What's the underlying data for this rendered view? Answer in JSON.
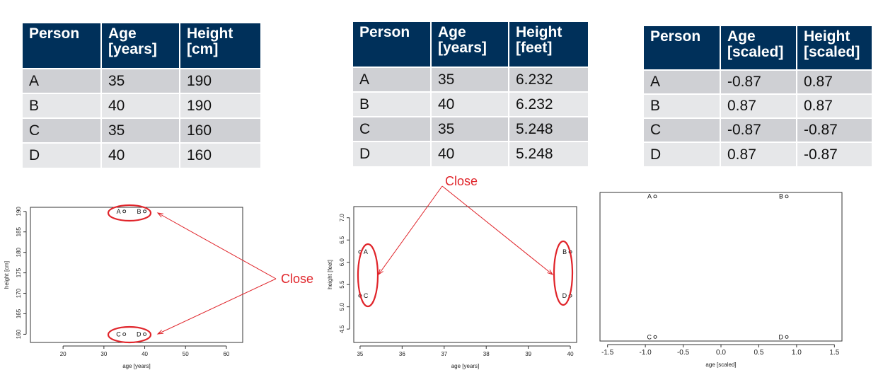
{
  "tables": [
    {
      "headers": [
        [
          "Person"
        ],
        [
          "Age",
          "[years]"
        ],
        [
          "Height",
          "[cm]"
        ]
      ],
      "rows": [
        [
          "A",
          "35",
          "190"
        ],
        [
          "B",
          "40",
          "190"
        ],
        [
          "C",
          "35",
          "160"
        ],
        [
          "D",
          "40",
          "160"
        ]
      ]
    },
    {
      "headers": [
        [
          "Person"
        ],
        [
          "Age",
          "[years]"
        ],
        [
          "Height",
          "[feet]"
        ]
      ],
      "rows": [
        [
          "A",
          "35",
          "6.232"
        ],
        [
          "B",
          "40",
          "6.232"
        ],
        [
          "C",
          "35",
          "5.248"
        ],
        [
          "D",
          "40",
          "5.248"
        ]
      ]
    },
    {
      "headers": [
        [
          "Person"
        ],
        [
          "Age",
          "[scaled]"
        ],
        [
          "Height",
          "[scaled]"
        ]
      ],
      "rows": [
        [
          "A",
          "-0.87",
          "0.87"
        ],
        [
          "B",
          "0.87",
          "0.87"
        ],
        [
          "C",
          "-0.87",
          "-0.87"
        ],
        [
          "D",
          "0.87",
          "-0.87"
        ]
      ]
    }
  ],
  "annotation": {
    "close_label": "Close",
    "color": "#e0242a"
  },
  "chart_data": [
    {
      "type": "scatter",
      "xlabel": "age [years]",
      "ylabel": "height [cm]",
      "xlim": [
        12,
        64
      ],
      "ylim": [
        158,
        191
      ],
      "xticks": [
        "20",
        "30",
        "40",
        "50",
        "60"
      ],
      "yticks": [
        "160",
        "165",
        "170",
        "175",
        "180",
        "185",
        "190"
      ],
      "points": [
        {
          "label": "A",
          "x": 35,
          "y": 190
        },
        {
          "label": "B",
          "x": 40,
          "y": 190
        },
        {
          "label": "C",
          "x": 35,
          "y": 160
        },
        {
          "label": "D",
          "x": 40,
          "y": 160
        }
      ]
    },
    {
      "type": "scatter",
      "xlabel": "age [years]",
      "ylabel": "height [feet]",
      "xlim": [
        34.85,
        40.15
      ],
      "ylim": [
        4.2,
        7.25
      ],
      "xticks": [
        "35",
        "36",
        "37",
        "38",
        "39",
        "40"
      ],
      "yticks": [
        "4.5",
        "5.0",
        "5.5",
        "6.0",
        "6.5",
        "7.0"
      ],
      "points": [
        {
          "label": "A",
          "x": 35,
          "y": 6.232
        },
        {
          "label": "B",
          "x": 40,
          "y": 6.232
        },
        {
          "label": "C",
          "x": 35,
          "y": 5.248
        },
        {
          "label": "D",
          "x": 40,
          "y": 5.248
        }
      ]
    },
    {
      "type": "scatter",
      "xlabel": "age [scaled]",
      "ylabel": "",
      "xlim": [
        -1.6,
        1.6
      ],
      "ylim": [
        -0.92,
        0.92
      ],
      "xticks": [
        "-1.5",
        "-1.0",
        "-0.5",
        "0.0",
        "0.5",
        "1.0",
        "1.5"
      ],
      "yticks": [],
      "points": [
        {
          "label": "A",
          "x": -0.87,
          "y": 0.87
        },
        {
          "label": "B",
          "x": 0.87,
          "y": 0.87
        },
        {
          "label": "C",
          "x": -0.87,
          "y": -0.87
        },
        {
          "label": "D",
          "x": 0.87,
          "y": -0.87
        }
      ]
    }
  ]
}
